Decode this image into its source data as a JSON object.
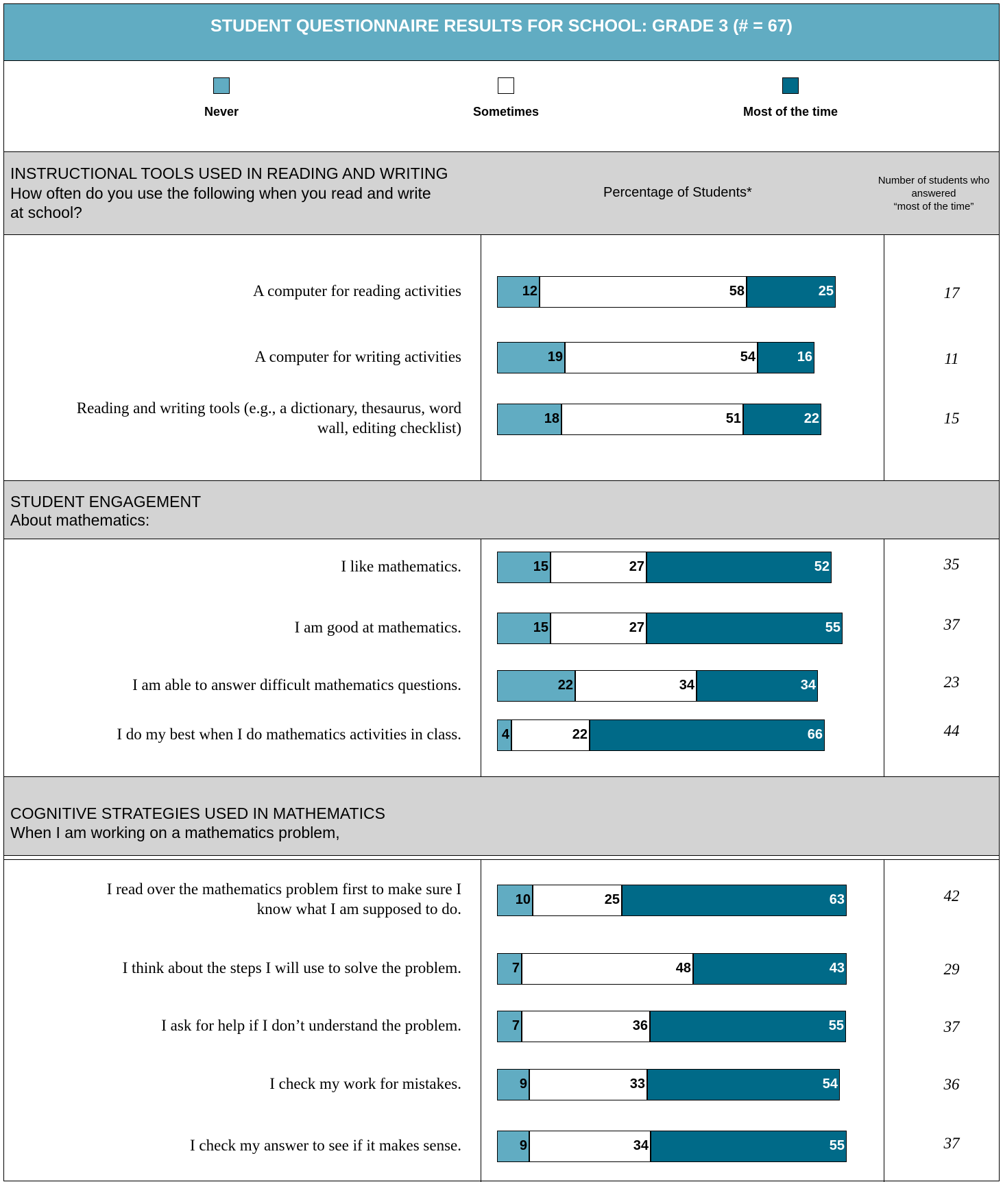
{
  "title": "STUDENT QUESTIONNAIRE RESULTS FOR SCHOOL: GRADE 3 (# = 67)",
  "legend": [
    {
      "label": "Never",
      "color": "#61acc2"
    },
    {
      "label": "Sometimes",
      "color": "#ffffff"
    },
    {
      "label": "Most of the time",
      "color": "#006a88"
    }
  ],
  "column_headers": {
    "percentage": "Percentage of Students*",
    "count_line1": "Number of students who",
    "count_line2": "answered",
    "count_line3": "“most of the time”"
  },
  "sections": [
    {
      "title": "INSTRUCTIONAL TOOLS USED IN READING AND WRITING",
      "subtitle_line1": "How often do you use the following when you read and write",
      "subtitle_line2": "at school?"
    },
    {
      "title": "STUDENT ENGAGEMENT",
      "subtitle_line1": "About mathematics:"
    },
    {
      "title": "COGNITIVE STRATEGIES USED IN MATHEMATICS",
      "subtitle_line1": "When I am working on a mathematics problem,"
    }
  ],
  "chart_data": {
    "type": "bar",
    "orientation": "horizontal",
    "stacked": true,
    "series_names": [
      "Never",
      "Sometimes",
      "Most of the time"
    ],
    "rows": [
      {
        "label": [
          "A computer for reading activities"
        ],
        "never": 12,
        "sometimes": 58,
        "most": 25,
        "count": "17"
      },
      {
        "label": [
          "A computer for writing activities"
        ],
        "never": 19,
        "sometimes": 54,
        "most": 16,
        "count": "11"
      },
      {
        "label": [
          "Reading and writing tools (e.g., a dictionary, thesaurus, word",
          "wall, editing checklist)"
        ],
        "never": 18,
        "sometimes": 51,
        "most": 22,
        "count": "15"
      },
      {
        "label": [
          "I like mathematics."
        ],
        "never": 15,
        "sometimes": 27,
        "most": 52,
        "count": "35"
      },
      {
        "label": [
          "I am good at mathematics."
        ],
        "never": 15,
        "sometimes": 27,
        "most": 55,
        "count": "37"
      },
      {
        "label": [
          "I am able to answer difficult mathematics questions."
        ],
        "never": 22,
        "sometimes": 34,
        "most": 34,
        "count": "23"
      },
      {
        "label": [
          "I do my best when I do mathematics activities in class."
        ],
        "never": 4,
        "sometimes": 22,
        "most": 66,
        "count": "44"
      },
      {
        "label": [
          "I read over the mathematics problem first to make sure I",
          "know what I am supposed to do."
        ],
        "never": 10,
        "sometimes": 25,
        "most": 63,
        "count": "42"
      },
      {
        "label": [
          "I think about the steps I will use to solve the problem."
        ],
        "never": 7,
        "sometimes": 48,
        "most": 43,
        "count": "29"
      },
      {
        "label": [
          "I ask for help if I don’t understand the problem."
        ],
        "never": 7,
        "sometimes": 36,
        "most": 55,
        "count": "37"
      },
      {
        "label": [
          "I check my work for mistakes."
        ],
        "never": 9,
        "sometimes": 33,
        "most": 54,
        "count": "36"
      },
      {
        "label": [
          "I check my answer to see if it makes sense."
        ],
        "never": 9,
        "sometimes": 34,
        "most": 55,
        "count": "37"
      }
    ]
  }
}
